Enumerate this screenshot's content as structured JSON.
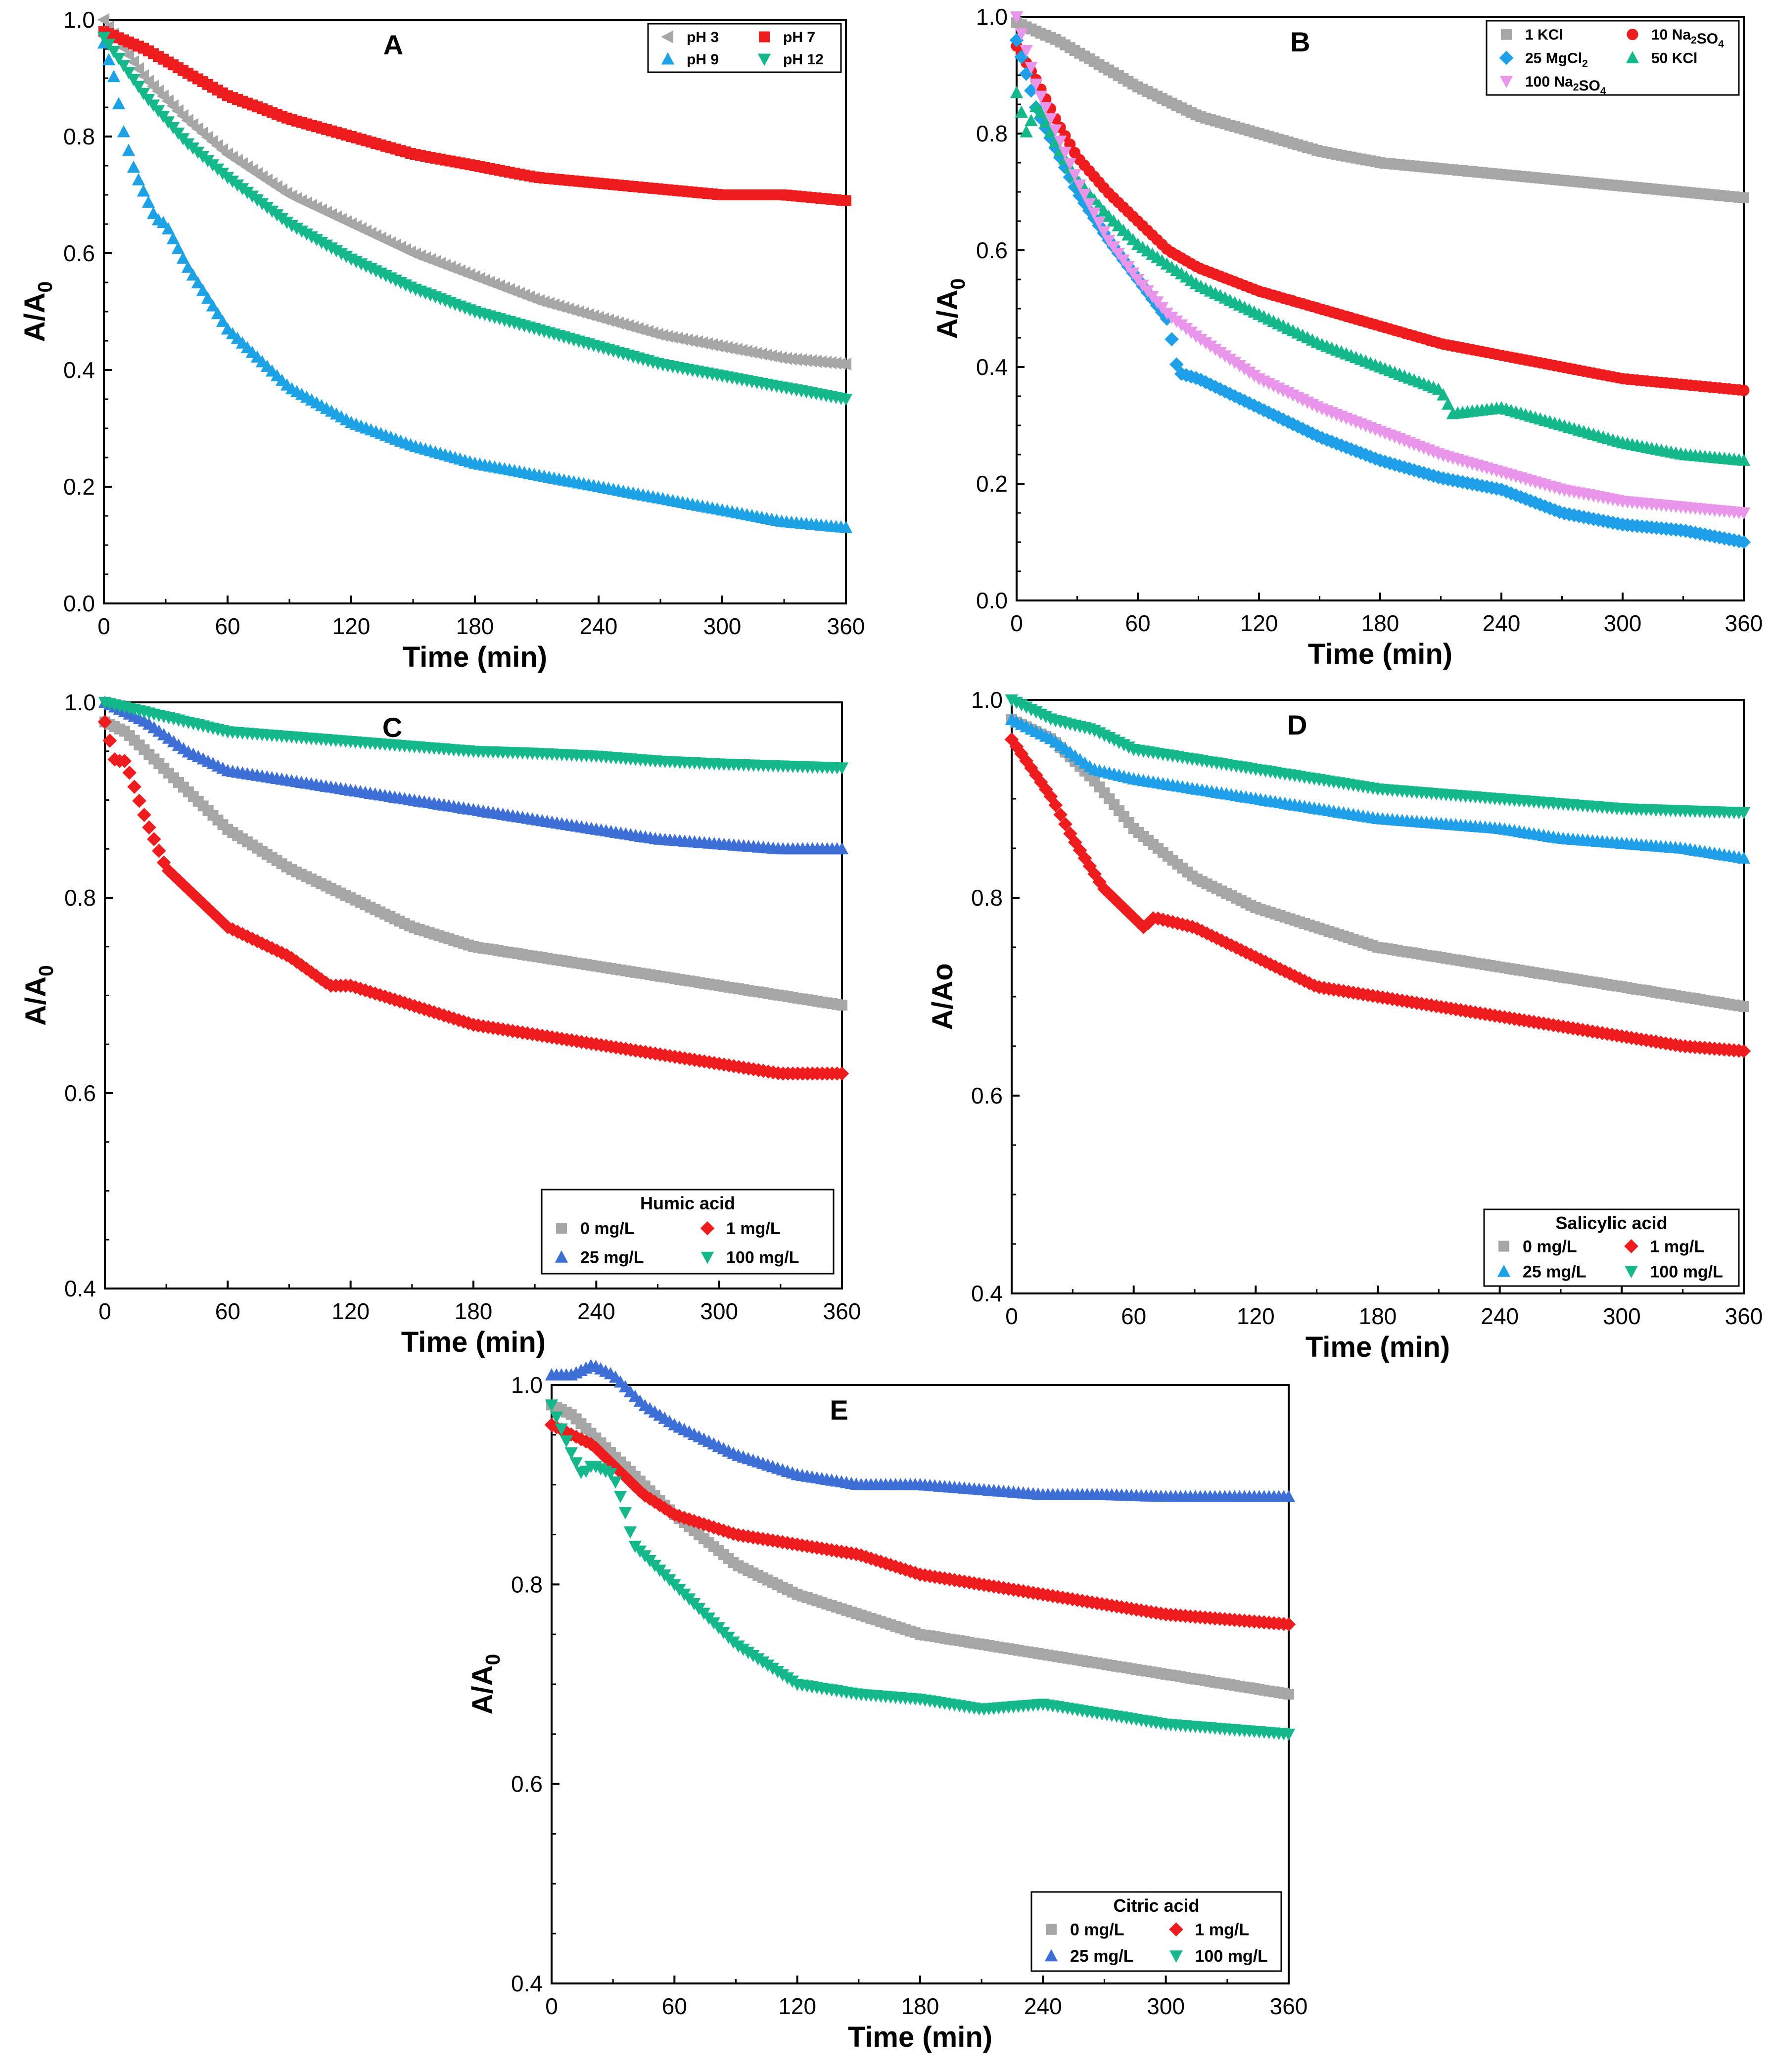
{
  "figure": {
    "colors": {
      "gray": "#a6a6a6",
      "red": "#ee1c1c",
      "blue": "#1ea2e6",
      "green": "#14b88a",
      "lightblue": "#1e9fe8",
      "pink": "#e895ea",
      "royal": "#3e6fd6",
      "axis": "#000000"
    }
  },
  "chart_data": [
    {
      "panel": "A",
      "type": "scatter",
      "title": "A",
      "xlabel": "Time (min)",
      "ylabel": "A/A0",
      "xlim": [
        0,
        360
      ],
      "ylim": [
        0,
        1.0
      ],
      "xticks": [
        "0",
        "60",
        "120",
        "180",
        "240",
        "300",
        "360"
      ],
      "yticks": [
        "0.0",
        "0.2",
        "0.4",
        "0.6",
        "0.8",
        "1.0"
      ],
      "legend_title": "",
      "legend_position": "top-right",
      "series": [
        {
          "name": "pH 3",
          "marker": "triangle-left",
          "color": "gray",
          "x": [
            0,
            20,
            40,
            60,
            90,
            120,
            150,
            180,
            210,
            240,
            270,
            300,
            330,
            360
          ],
          "values": [
            1.0,
            0.9,
            0.83,
            0.77,
            0.7,
            0.65,
            0.6,
            0.56,
            0.52,
            0.49,
            0.46,
            0.44,
            0.42,
            0.41
          ]
        },
        {
          "name": "pH 7",
          "marker": "square",
          "color": "red",
          "x": [
            0,
            20,
            40,
            60,
            90,
            120,
            150,
            180,
            210,
            240,
            270,
            300,
            330,
            360
          ],
          "values": [
            0.98,
            0.95,
            0.91,
            0.87,
            0.83,
            0.8,
            0.77,
            0.75,
            0.73,
            0.72,
            0.71,
            0.7,
            0.7,
            0.69
          ]
        },
        {
          "name": "pH 9",
          "marker": "triangle-up",
          "color": "blue",
          "x": [
            0,
            5,
            10,
            15,
            20,
            25,
            30,
            40,
            60,
            90,
            120,
            150,
            180,
            210,
            240,
            270,
            300,
            330,
            360
          ],
          "values": [
            0.96,
            0.9,
            0.8,
            0.74,
            0.7,
            0.66,
            0.65,
            0.58,
            0.47,
            0.37,
            0.31,
            0.27,
            0.24,
            0.22,
            0.2,
            0.18,
            0.16,
            0.14,
            0.13
          ]
        },
        {
          "name": "pH 12",
          "marker": "triangle-down",
          "color": "green",
          "x": [
            0,
            20,
            40,
            60,
            90,
            120,
            150,
            180,
            210,
            240,
            270,
            300,
            330,
            360
          ],
          "values": [
            0.97,
            0.87,
            0.79,
            0.73,
            0.65,
            0.59,
            0.54,
            0.5,
            0.47,
            0.44,
            0.41,
            0.39,
            0.37,
            0.35
          ]
        }
      ]
    },
    {
      "panel": "B",
      "type": "scatter",
      "title": "B",
      "xlabel": "Time (min)",
      "ylabel": "A/A0",
      "xlim": [
        0,
        360
      ],
      "ylim": [
        0,
        1.0
      ],
      "xticks": [
        "0",
        "60",
        "120",
        "180",
        "240",
        "300",
        "360"
      ],
      "yticks": [
        "0.0",
        "0.2",
        "0.4",
        "0.6",
        "0.8",
        "1.0"
      ],
      "legend_title": "",
      "legend_position": "top-right",
      "series": [
        {
          "name": "1 KCl",
          "marker": "square",
          "color": "gray",
          "x": [
            0,
            20,
            40,
            60,
            90,
            120,
            150,
            180,
            210,
            240,
            270,
            300,
            330,
            360
          ],
          "values": [
            0.99,
            0.96,
            0.92,
            0.88,
            0.83,
            0.8,
            0.77,
            0.75,
            0.74,
            0.73,
            0.72,
            0.71,
            0.7,
            0.69
          ]
        },
        {
          "name": "10 Na2SO4",
          "marker": "circle",
          "color": "red",
          "x": [
            0,
            10,
            20,
            30,
            45,
            60,
            75,
            90,
            120,
            150,
            180,
            210,
            240,
            270,
            300,
            330,
            360
          ],
          "values": [
            0.95,
            0.89,
            0.82,
            0.76,
            0.7,
            0.65,
            0.6,
            0.57,
            0.53,
            0.5,
            0.47,
            0.44,
            0.42,
            0.4,
            0.38,
            0.37,
            0.36
          ]
        },
        {
          "name": "25 MgCl2",
          "marker": "diamond",
          "color": "lightblue",
          "x": [
            0,
            10,
            20,
            30,
            45,
            60,
            75,
            80,
            90,
            120,
            150,
            180,
            210,
            240,
            270,
            300,
            330,
            360
          ],
          "values": [
            0.96,
            0.84,
            0.77,
            0.7,
            0.62,
            0.55,
            0.48,
            0.39,
            0.38,
            0.33,
            0.28,
            0.24,
            0.21,
            0.19,
            0.15,
            0.13,
            0.12,
            0.1
          ]
        },
        {
          "name": "50 KCl",
          "marker": "triangle-up",
          "color": "green",
          "x": [
            0,
            5,
            10,
            20,
            30,
            45,
            60,
            90,
            120,
            150,
            180,
            210,
            216,
            240,
            270,
            300,
            330,
            360
          ],
          "values": [
            0.87,
            0.8,
            0.85,
            0.78,
            0.72,
            0.66,
            0.61,
            0.54,
            0.49,
            0.44,
            0.4,
            0.36,
            0.32,
            0.33,
            0.3,
            0.27,
            0.25,
            0.24
          ]
        },
        {
          "name": "100 Na2SO4",
          "marker": "triangle-down",
          "color": "pink",
          "x": [
            0,
            10,
            20,
            30,
            45,
            60,
            75,
            90,
            120,
            150,
            180,
            210,
            240,
            270,
            300,
            330,
            360
          ],
          "values": [
            1.0,
            0.88,
            0.8,
            0.72,
            0.62,
            0.55,
            0.49,
            0.45,
            0.38,
            0.33,
            0.29,
            0.25,
            0.22,
            0.19,
            0.17,
            0.16,
            0.15
          ]
        }
      ]
    },
    {
      "panel": "C",
      "type": "scatter",
      "title": "C",
      "xlabel": "Time (min)",
      "ylabel": "A/A0",
      "xlim": [
        0,
        360
      ],
      "ylim": [
        0.4,
        1.0
      ],
      "xticks": [
        "0",
        "60",
        "120",
        "180",
        "240",
        "300",
        "360"
      ],
      "yticks": [
        "0.4",
        "0.6",
        "0.8",
        "1.0"
      ],
      "legend_title": "Humic acid",
      "legend_position": "bottom-right",
      "series": [
        {
          "name": "0 mg/L",
          "marker": "square",
          "color": "gray",
          "x": [
            0,
            10,
            20,
            40,
            60,
            90,
            120,
            150,
            180,
            210,
            240,
            270,
            300,
            330,
            360
          ],
          "values": [
            0.98,
            0.97,
            0.95,
            0.91,
            0.87,
            0.83,
            0.8,
            0.77,
            0.75,
            0.74,
            0.73,
            0.72,
            0.71,
            0.7,
            0.69
          ]
        },
        {
          "name": "1 mg/L",
          "marker": "diamond",
          "color": "red",
          "x": [
            0,
            5,
            10,
            20,
            30,
            45,
            60,
            90,
            110,
            120,
            150,
            180,
            210,
            240,
            270,
            300,
            330,
            360
          ],
          "values": [
            0.98,
            0.94,
            0.94,
            0.88,
            0.83,
            0.8,
            0.77,
            0.74,
            0.71,
            0.71,
            0.69,
            0.67,
            0.66,
            0.65,
            0.64,
            0.63,
            0.62,
            0.62
          ]
        },
        {
          "name": "25 mg/L",
          "marker": "triangle-up",
          "color": "royal",
          "x": [
            0,
            20,
            40,
            60,
            90,
            120,
            150,
            180,
            210,
            240,
            270,
            300,
            330,
            360
          ],
          "values": [
            1.0,
            0.98,
            0.95,
            0.93,
            0.92,
            0.91,
            0.9,
            0.89,
            0.88,
            0.87,
            0.86,
            0.855,
            0.85,
            0.85
          ]
        },
        {
          "name": "100 mg/L",
          "marker": "triangle-down",
          "color": "green",
          "x": [
            0,
            20,
            40,
            60,
            90,
            120,
            150,
            180,
            210,
            240,
            270,
            300,
            330,
            360
          ],
          "values": [
            1.0,
            0.99,
            0.98,
            0.97,
            0.965,
            0.96,
            0.955,
            0.95,
            0.948,
            0.945,
            0.94,
            0.937,
            0.935,
            0.933
          ]
        }
      ]
    },
    {
      "panel": "D",
      "type": "scatter",
      "title": "D",
      "xlabel": "Time (min)",
      "ylabel": "A/Ao",
      "xlim": [
        0,
        360
      ],
      "ylim": [
        0.4,
        1.0
      ],
      "xticks": [
        "0",
        "60",
        "120",
        "180",
        "240",
        "300",
        "360"
      ],
      "yticks": [
        "0.4",
        "0.6",
        "0.8",
        "1.0"
      ],
      "legend_title": "Salicylic acid",
      "legend_position": "bottom-right",
      "series": [
        {
          "name": "0 mg/L",
          "marker": "square",
          "color": "gray",
          "x": [
            0,
            10,
            20,
            40,
            60,
            90,
            120,
            150,
            180,
            210,
            240,
            270,
            300,
            330,
            360
          ],
          "values": [
            0.98,
            0.97,
            0.96,
            0.92,
            0.87,
            0.82,
            0.79,
            0.77,
            0.75,
            0.74,
            0.73,
            0.72,
            0.71,
            0.7,
            0.69
          ]
        },
        {
          "name": "1 mg/L",
          "marker": "diamond",
          "color": "red",
          "x": [
            0,
            10,
            20,
            30,
            45,
            60,
            65,
            70,
            90,
            120,
            150,
            180,
            210,
            240,
            270,
            300,
            330,
            360
          ],
          "values": [
            0.96,
            0.93,
            0.9,
            0.86,
            0.81,
            0.78,
            0.77,
            0.78,
            0.77,
            0.74,
            0.71,
            0.7,
            0.69,
            0.68,
            0.67,
            0.66,
            0.65,
            0.645
          ]
        },
        {
          "name": "25 mg/L",
          "marker": "triangle-up",
          "color": "lightblue",
          "x": [
            0,
            20,
            40,
            60,
            90,
            120,
            150,
            180,
            210,
            240,
            270,
            300,
            330,
            360
          ],
          "values": [
            0.98,
            0.96,
            0.93,
            0.92,
            0.91,
            0.9,
            0.89,
            0.88,
            0.875,
            0.87,
            0.86,
            0.855,
            0.85,
            0.84
          ]
        },
        {
          "name": "100 mg/L",
          "marker": "triangle-down",
          "color": "green",
          "x": [
            0,
            20,
            40,
            60,
            90,
            120,
            150,
            180,
            210,
            240,
            270,
            300,
            330,
            360
          ],
          "values": [
            1.0,
            0.98,
            0.97,
            0.95,
            0.94,
            0.93,
            0.92,
            0.91,
            0.905,
            0.9,
            0.895,
            0.89,
            0.888,
            0.886
          ]
        }
      ]
    },
    {
      "panel": "E",
      "type": "scatter",
      "title": "E",
      "xlabel": "Time (min)",
      "ylabel": "A/A0",
      "xlim": [
        0,
        360
      ],
      "ylim": [
        0.4,
        1.0
      ],
      "xticks": [
        "0",
        "60",
        "120",
        "180",
        "240",
        "300",
        "360"
      ],
      "yticks": [
        "0.4",
        "0.6",
        "0.8",
        "1.0"
      ],
      "legend_title": "Citric acid",
      "legend_position": "bottom-right",
      "series": [
        {
          "name": "0 mg/L",
          "marker": "square",
          "color": "gray",
          "x": [
            0,
            10,
            20,
            40,
            60,
            90,
            120,
            150,
            180,
            210,
            240,
            270,
            300,
            330,
            360
          ],
          "values": [
            0.98,
            0.97,
            0.95,
            0.91,
            0.87,
            0.82,
            0.79,
            0.77,
            0.75,
            0.74,
            0.73,
            0.72,
            0.71,
            0.7,
            0.69
          ]
        },
        {
          "name": "1 mg/L",
          "marker": "diamond",
          "color": "red",
          "x": [
            0,
            10,
            20,
            30,
            45,
            60,
            90,
            120,
            150,
            180,
            210,
            240,
            270,
            300,
            330,
            360
          ],
          "values": [
            0.96,
            0.95,
            0.94,
            0.92,
            0.89,
            0.87,
            0.85,
            0.84,
            0.83,
            0.81,
            0.8,
            0.79,
            0.78,
            0.77,
            0.765,
            0.76
          ]
        },
        {
          "name": "25 mg/L",
          "marker": "triangle-up",
          "color": "royal",
          "x": [
            0,
            10,
            20,
            30,
            45,
            60,
            90,
            120,
            150,
            180,
            210,
            240,
            270,
            300,
            330,
            360
          ],
          "values": [
            1.01,
            1.01,
            1.02,
            1.01,
            0.98,
            0.96,
            0.93,
            0.91,
            0.9,
            0.9,
            0.895,
            0.89,
            0.89,
            0.888,
            0.888,
            0.888
          ]
        },
        {
          "name": "100 mg/L",
          "marker": "triangle-down",
          "color": "green",
          "x": [
            0,
            10,
            15,
            20,
            30,
            35,
            40,
            45,
            60,
            90,
            120,
            150,
            180,
            210,
            240,
            270,
            300,
            330,
            360
          ],
          "values": [
            0.98,
            0.93,
            0.91,
            0.92,
            0.91,
            0.88,
            0.84,
            0.83,
            0.8,
            0.74,
            0.7,
            0.69,
            0.685,
            0.675,
            0.68,
            0.67,
            0.66,
            0.655,
            0.65
          ]
        }
      ]
    }
  ]
}
